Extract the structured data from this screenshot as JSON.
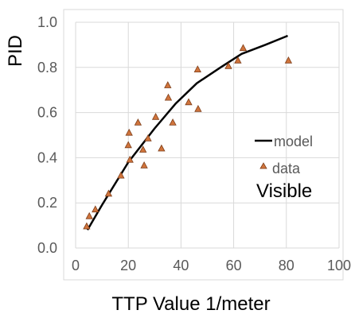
{
  "chart_data": {
    "type": "scatter",
    "xlabel": "TTP Value 1/meter",
    "ylabel": "PID",
    "xlim": [
      0,
      100
    ],
    "ylim": [
      0,
      1.0
    ],
    "x_ticks": [
      "0",
      "20",
      "40",
      "60",
      "80",
      "100"
    ],
    "y_ticks": [
      "0.0",
      "0.2",
      "0.4",
      "0.6",
      "0.8",
      "1.0"
    ],
    "grid": true,
    "legend_position": "right",
    "annotation": "Visible",
    "series": [
      {
        "name": "model",
        "type": "line",
        "color": "#000000",
        "x": [
          4.5,
          10,
          20,
          30,
          38,
          46,
          55,
          63,
          72,
          80.5
        ],
        "y": [
          0.08,
          0.19,
          0.38,
          0.53,
          0.64,
          0.73,
          0.8,
          0.86,
          0.9,
          0.94
        ]
      },
      {
        "name": "data",
        "type": "scatter",
        "marker": "triangle",
        "color": "#d0743c",
        "stroke": "#7f3f1a",
        "x": [
          4.2,
          5.2,
          7.5,
          12.5,
          17.2,
          20.0,
          20.3,
          20.6,
          23.7,
          25.6,
          26.0,
          27.5,
          30.4,
          32.6,
          35.0,
          35.2,
          36.9,
          42.9,
          46.3,
          46.5,
          58.0,
          61.6,
          63.6,
          80.8
        ],
        "y": [
          0.095,
          0.14,
          0.17,
          0.24,
          0.32,
          0.455,
          0.51,
          0.39,
          0.555,
          0.435,
          0.365,
          0.485,
          0.58,
          0.44,
          0.72,
          0.665,
          0.555,
          0.645,
          0.79,
          0.615,
          0.805,
          0.83,
          0.885,
          0.83
        ]
      }
    ]
  }
}
